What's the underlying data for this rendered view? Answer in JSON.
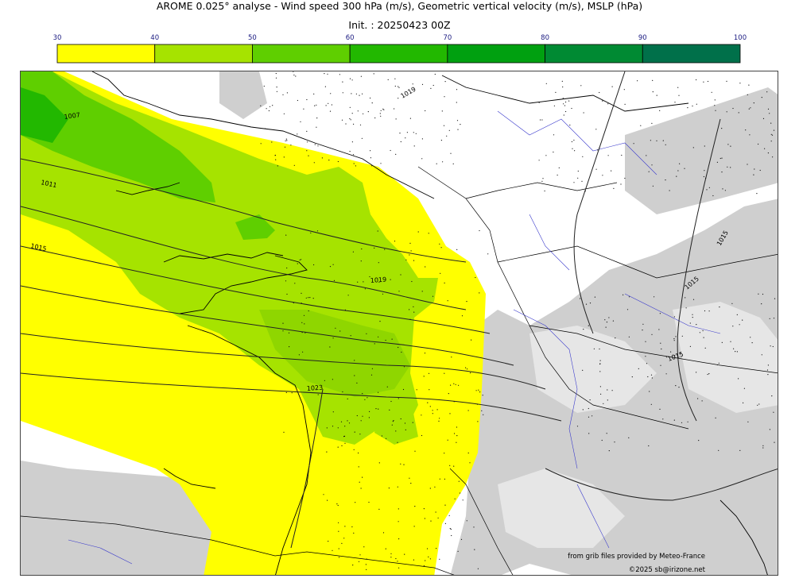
{
  "header": {
    "title": "AROME 0.025° analyse - Wind speed 300 hPa (m/s), Geometric vertical velocity (m/s), MSLP (hPa)",
    "init": "Init. : 20250423 00Z"
  },
  "colorbar": {
    "ticks": [
      "30",
      "40",
      "50",
      "60",
      "70",
      "80",
      "90",
      "100"
    ],
    "colors": [
      "#ffff00",
      "#a6e300",
      "#5fcf00",
      "#22b800",
      "#00a010",
      "#008a33",
      "#00704a"
    ]
  },
  "isobar_labels": [
    "1007",
    "1011",
    "1015",
    "1019",
    "1019",
    "1023",
    "1015",
    "1015",
    "1015",
    "1015"
  ],
  "credits": {
    "source": "from grib files provided by Meteo-France",
    "copyright": "©2025 sb@irizone.net"
  }
}
